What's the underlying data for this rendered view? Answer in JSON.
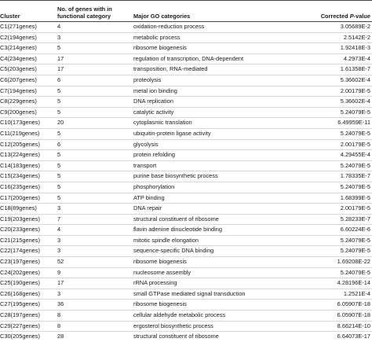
{
  "table": {
    "headers": {
      "cluster": "Cluster",
      "num_genes_line1": "No. of genes with in",
      "num_genes_line2": "functional category",
      "go": "Major GO categories",
      "pvalue_prefix": "Corrected ",
      "pvalue_italic": "P",
      "pvalue_suffix": "-value"
    },
    "rows": [
      {
        "cluster": "C1(271genes)",
        "n": "4",
        "go": "oxidation-reduction process",
        "p": "3.05689E-2"
      },
      {
        "cluster": "C2(194genes)",
        "n": "3",
        "go": "metabolic process",
        "p": "2.5142E-2"
      },
      {
        "cluster": "C3(214genes)",
        "n": "5",
        "go": "ribosome biogenesis",
        "p": "1.92418E-3"
      },
      {
        "cluster": "C4(234genes)",
        "n": "17",
        "go": "regulation of transcription, DNA-dependent",
        "p": "4.2973E-4"
      },
      {
        "cluster": "C5(203genes)",
        "n": "17",
        "go": "transposition, RNA-mediated",
        "p": "1.61358E-7"
      },
      {
        "cluster": "C6(207genes)",
        "n": "6",
        "go": "proteolysis",
        "p": "5.36602E-4"
      },
      {
        "cluster": "C7(194genes)",
        "n": "5",
        "go": "metal ion binding",
        "p": "2.00179E-5"
      },
      {
        "cluster": "C8(229genes)",
        "n": "5",
        "go": "DNA replication",
        "p": "5.36602E-4"
      },
      {
        "cluster": "C9(200genes)",
        "n": "5",
        "go": "catalytic activity",
        "p": "5.24079E-5"
      },
      {
        "cluster": "C10(173genes)",
        "n": "20",
        "go": "cytoplasmic translation",
        "p": "6.49959E-11"
      },
      {
        "cluster": "C11(219genes)",
        "n": "5",
        "go": "ubiquitin-protein ligase activity",
        "p": "5.24079E-5"
      },
      {
        "cluster": "C12(205genes)",
        "n": "6",
        "go": "glycolysis",
        "p": "2.00179E-5"
      },
      {
        "cluster": "C13(224genes)",
        "n": "5",
        "go": "protein refolding",
        "p": "4.29455E-4"
      },
      {
        "cluster": "C14(183genes)",
        "n": "5",
        "go": "transport",
        "p": "5.24079E-5"
      },
      {
        "cluster": "C15(234genes)",
        "n": "5",
        "go": "purine base biosynthetic process",
        "p": "1.78335E-7"
      },
      {
        "cluster": "C16(235genes)",
        "n": "5",
        "go": "phosphorylation",
        "p": "5.24079E-5"
      },
      {
        "cluster": "C17(200genes)",
        "n": "5",
        "go": "ATP binding",
        "p": "1.68399E-5"
      },
      {
        "cluster": "C18(89genes)",
        "n": "3",
        "go": "DNA repair",
        "p": "2.00179E-5"
      },
      {
        "cluster": "C19(203genes)",
        "n": "7",
        "go": "structural constituent of ribosome",
        "p": "5.28233E-7"
      },
      {
        "cluster": "C20(233genes)",
        "n": "4",
        "go": "flavin adenine dinucleotide binding",
        "p": "6.60224E-6"
      },
      {
        "cluster": "C21(215genes)",
        "n": "3",
        "go": "mitotic spindle elongation",
        "p": "5.24079E-5"
      },
      {
        "cluster": "C22(174genes)",
        "n": "3",
        "go": "sequence-specific DNA binding",
        "p": "5.24079E-5"
      },
      {
        "cluster": "C23(197genes)",
        "n": "52",
        "go": "ribosome biogenesis",
        "p": "1.69208E-22"
      },
      {
        "cluster": "C24(202genes)",
        "n": "9",
        "go": "nucleosome assembly",
        "p": "5.24079E-5"
      },
      {
        "cluster": "C25(190genes)",
        "n": "17",
        "go": "rRNA processing",
        "p": "4.28196E-14"
      },
      {
        "cluster": "C26(168genes)",
        "n": "3",
        "go": "small GTPase mediated signal transduction",
        "p": "1.2521E-4"
      },
      {
        "cluster": "C27(195genes)",
        "n": "36",
        "go": "ribosome biogenesis",
        "p": "6.05907E-18"
      },
      {
        "cluster": "C28(197genes)",
        "n": "8",
        "go": "cellular aldehyde metabolic process",
        "p": "6.05907E-18"
      },
      {
        "cluster": "C29(227genes)",
        "n": "8",
        "go": "ergosterol biosynthetic process",
        "p": "8.66214E-10"
      },
      {
        "cluster": "C30(205genes)",
        "n": "28",
        "go": "structural constituent of ribosome",
        "p": "6.64073E-17"
      }
    ]
  }
}
